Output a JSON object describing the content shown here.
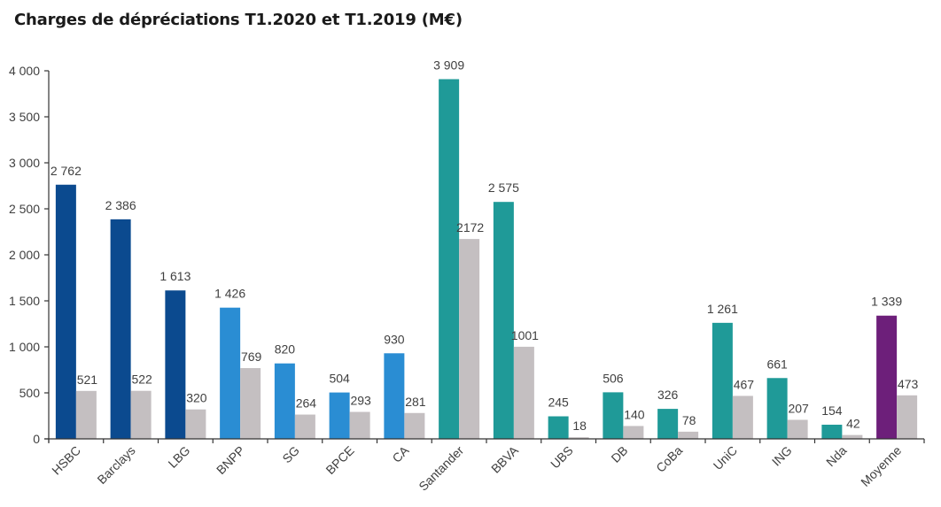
{
  "chart_data": {
    "type": "bar",
    "title": "Charges de dépréciations T1.2020 et T1.2019 (M€)",
    "xlabel": "",
    "ylabel": "",
    "ylim": [
      0,
      4000
    ],
    "yticks": [
      0,
      500,
      1000,
      1500,
      2000,
      2500,
      3000,
      3500,
      4000
    ],
    "ytick_labels": [
      "0",
      "500",
      "1 000",
      "1 500",
      "2 000",
      "2 500",
      "3 000",
      "3 500",
      "4 000"
    ],
    "grid": false,
    "legend": "none",
    "categories": [
      "HSBC",
      "Barclays",
      "LBG",
      "BNPP",
      "SG",
      "BPCE",
      "CA",
      "Santander",
      "BBVA",
      "UBS",
      "DB",
      "CoBa",
      "UniC",
      "ING",
      "Nda",
      "Moyenne"
    ],
    "series": [
      {
        "name": "T1.2020",
        "values": [
          2762,
          2386,
          1613,
          1426,
          820,
          504,
          930,
          3909,
          2575,
          245,
          506,
          326,
          1261,
          661,
          154,
          1339
        ],
        "labels": [
          "2 762",
          "2 386",
          "1 613",
          "1 426",
          "820",
          "504",
          "930",
          "3 909",
          "2 575",
          "245",
          "506",
          "326",
          "1 261",
          "661",
          "154",
          "1 339"
        ],
        "colors": [
          "#0b4a8f",
          "#0b4a8f",
          "#0b4a8f",
          "#2a8dd3",
          "#2a8dd3",
          "#2a8dd3",
          "#2a8dd3",
          "#1f9a98",
          "#1f9a98",
          "#1f9a98",
          "#1f9a98",
          "#1f9a98",
          "#1f9a98",
          "#1f9a98",
          "#1f9a98",
          "#6d1f7a"
        ]
      },
      {
        "name": "T1.2019",
        "values": [
          521,
          522,
          320,
          769,
          264,
          293,
          281,
          2172,
          1001,
          18,
          140,
          78,
          467,
          207,
          42,
          473
        ],
        "labels": [
          "521",
          "522",
          "320",
          "769",
          "264",
          "293",
          "281",
          "2172",
          "1001",
          "18",
          "140",
          "78",
          "467",
          "207",
          "42",
          "473"
        ],
        "color": "#c4bfc1"
      }
    ]
  }
}
